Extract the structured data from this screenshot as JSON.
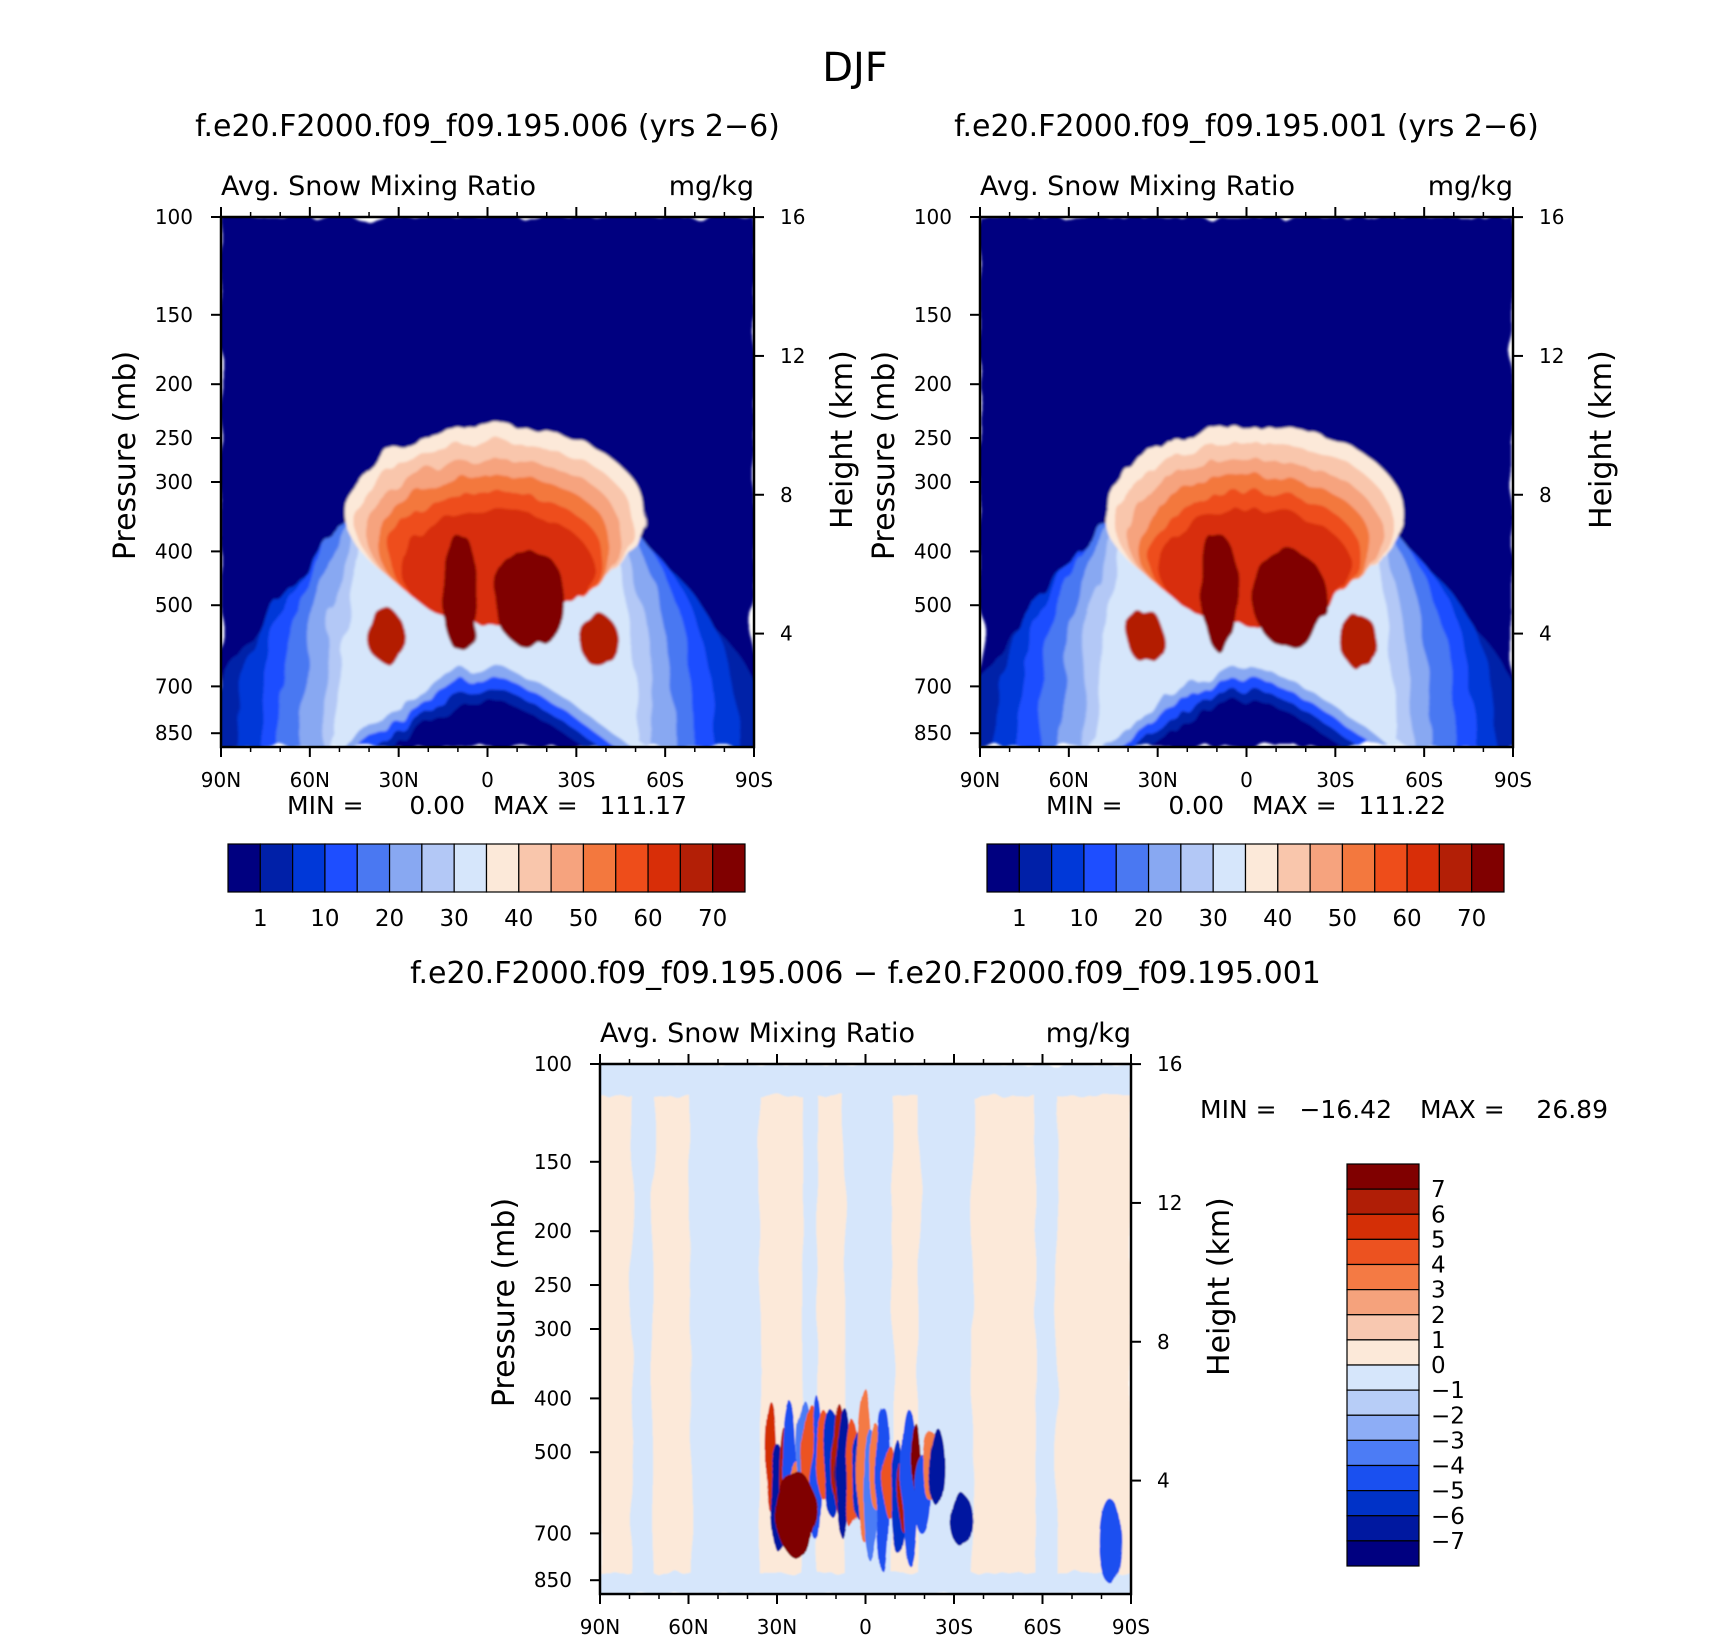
{
  "chart_data": {
    "type": "heatmap",
    "title": "DJF",
    "colors": {
      "abs": [
        "#000080",
        "#0020A8",
        "#0038D8",
        "#1E4EFF",
        "#4A78F2",
        "#88A8F2",
        "#B3C8F6",
        "#D6E6FB",
        "#FCE9D9",
        "#F9C6AC",
        "#F6A37E",
        "#F3783E",
        "#EE4D1A",
        "#D82E08",
        "#B31F06",
        "#800000"
      ],
      "diff": [
        "#000080",
        "#0018A0",
        "#0032C8",
        "#1A50F0",
        "#4C7CF5",
        "#8DADF6",
        "#B7CDF7",
        "#D6E6FB",
        "#FCE9D9",
        "#F8C8B0",
        "#F5A27C",
        "#F47A44",
        "#EC5220",
        "#D42F06",
        "#B01E06",
        "#800000"
      ]
    },
    "panels": [
      {
        "id": "case1",
        "title": "f.e20.F2000.f09_f09.195.006 (yrs 2-6)",
        "left_label": "Avg. Snow Mixing Ratio",
        "right_label": "mg/kg",
        "ylabel": "Pressure (mb)",
        "ylabel_right": "Height (km)",
        "x_ticks": [
          "90N",
          "60N",
          "30N",
          "0",
          "30S",
          "60S",
          "90S"
        ],
        "y_ticks": [
          "100",
          "150",
          "200",
          "250",
          "300",
          "400",
          "500",
          "700",
          "850"
        ],
        "height_ticks": [
          "16",
          "12",
          "8",
          "4"
        ],
        "min_label": "MIN =",
        "min_value": "0.00",
        "max_label": "MAX =",
        "max_value": "111.17",
        "colorbar_labels": [
          "1",
          "10",
          "20",
          "30",
          "40",
          "50",
          "60",
          "70"
        ]
      },
      {
        "id": "case2",
        "title": "f.e20.F2000.f09_f09.195.001 (yrs 2-6)",
        "left_label": "Avg. Snow Mixing Ratio",
        "right_label": "mg/kg",
        "ylabel": "Pressure (mb)",
        "ylabel_right": "Height (km)",
        "x_ticks": [
          "90N",
          "60N",
          "30N",
          "0",
          "30S",
          "60S",
          "90S"
        ],
        "y_ticks": [
          "100",
          "150",
          "200",
          "250",
          "300",
          "400",
          "500",
          "700",
          "850"
        ],
        "height_ticks": [
          "16",
          "12",
          "8",
          "4"
        ],
        "min_label": "MIN =",
        "min_value": "0.00",
        "max_label": "MAX =",
        "max_value": "111.22",
        "colorbar_labels": [
          "1",
          "10",
          "20",
          "30",
          "40",
          "50",
          "60",
          "70"
        ]
      },
      {
        "id": "difference",
        "title": "f.e20.F2000.f09_f09.195.006 - f.e20.F2000.f09_f09.195.001",
        "left_label": "Avg. Snow Mixing Ratio",
        "right_label": "mg/kg",
        "ylabel": "Pressure (mb)",
        "ylabel_right": "Height (km)",
        "x_ticks": [
          "90N",
          "60N",
          "30N",
          "0",
          "30S",
          "60S",
          "90S"
        ],
        "y_ticks": [
          "100",
          "150",
          "200",
          "250",
          "300",
          "400",
          "500",
          "700",
          "850"
        ],
        "height_ticks": [
          "16",
          "12",
          "8",
          "4"
        ],
        "min_label": "MIN =",
        "min_value": "-16.42",
        "max_label": "MAX =",
        "max_value": "26.89",
        "colorbar_labels": [
          "7",
          "6",
          "5",
          "4",
          "3",
          "2",
          "1",
          "0",
          "-1",
          "-2",
          "-3",
          "-4",
          "-5",
          "-6",
          "-7"
        ]
      }
    ]
  }
}
